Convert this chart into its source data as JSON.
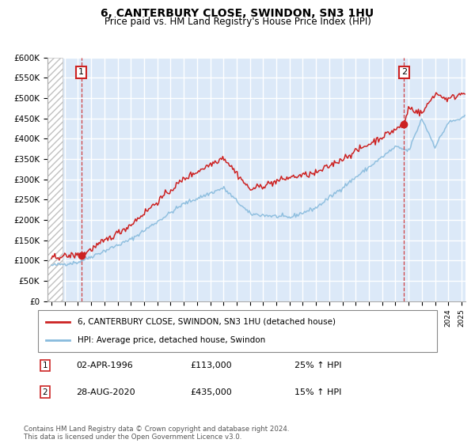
{
  "title": "6, CANTERBURY CLOSE, SWINDON, SN3 1HU",
  "subtitle": "Price paid vs. HM Land Registry's House Price Index (HPI)",
  "ylim": [
    0,
    600000
  ],
  "yticks": [
    0,
    50000,
    100000,
    150000,
    200000,
    250000,
    300000,
    350000,
    400000,
    450000,
    500000,
    550000,
    600000
  ],
  "xlim_start": 1993.7,
  "xlim_end": 2025.3,
  "background_color": "#dce9f8",
  "hatch_color": "#c0c0c0",
  "grid_color": "#ffffff",
  "sale1_date": 1996.25,
  "sale1_price": 113000,
  "sale2_date": 2020.65,
  "sale2_price": 435000,
  "legend_label_red": "6, CANTERBURY CLOSE, SWINDON, SN3 1HU (detached house)",
  "legend_label_blue": "HPI: Average price, detached house, Swindon",
  "red_line_color": "#cc2222",
  "blue_line_color": "#88bbdd",
  "dot_color": "#cc2222",
  "footer": "Contains HM Land Registry data © Crown copyright and database right 2024.\nThis data is licensed under the Open Government Licence v3.0."
}
